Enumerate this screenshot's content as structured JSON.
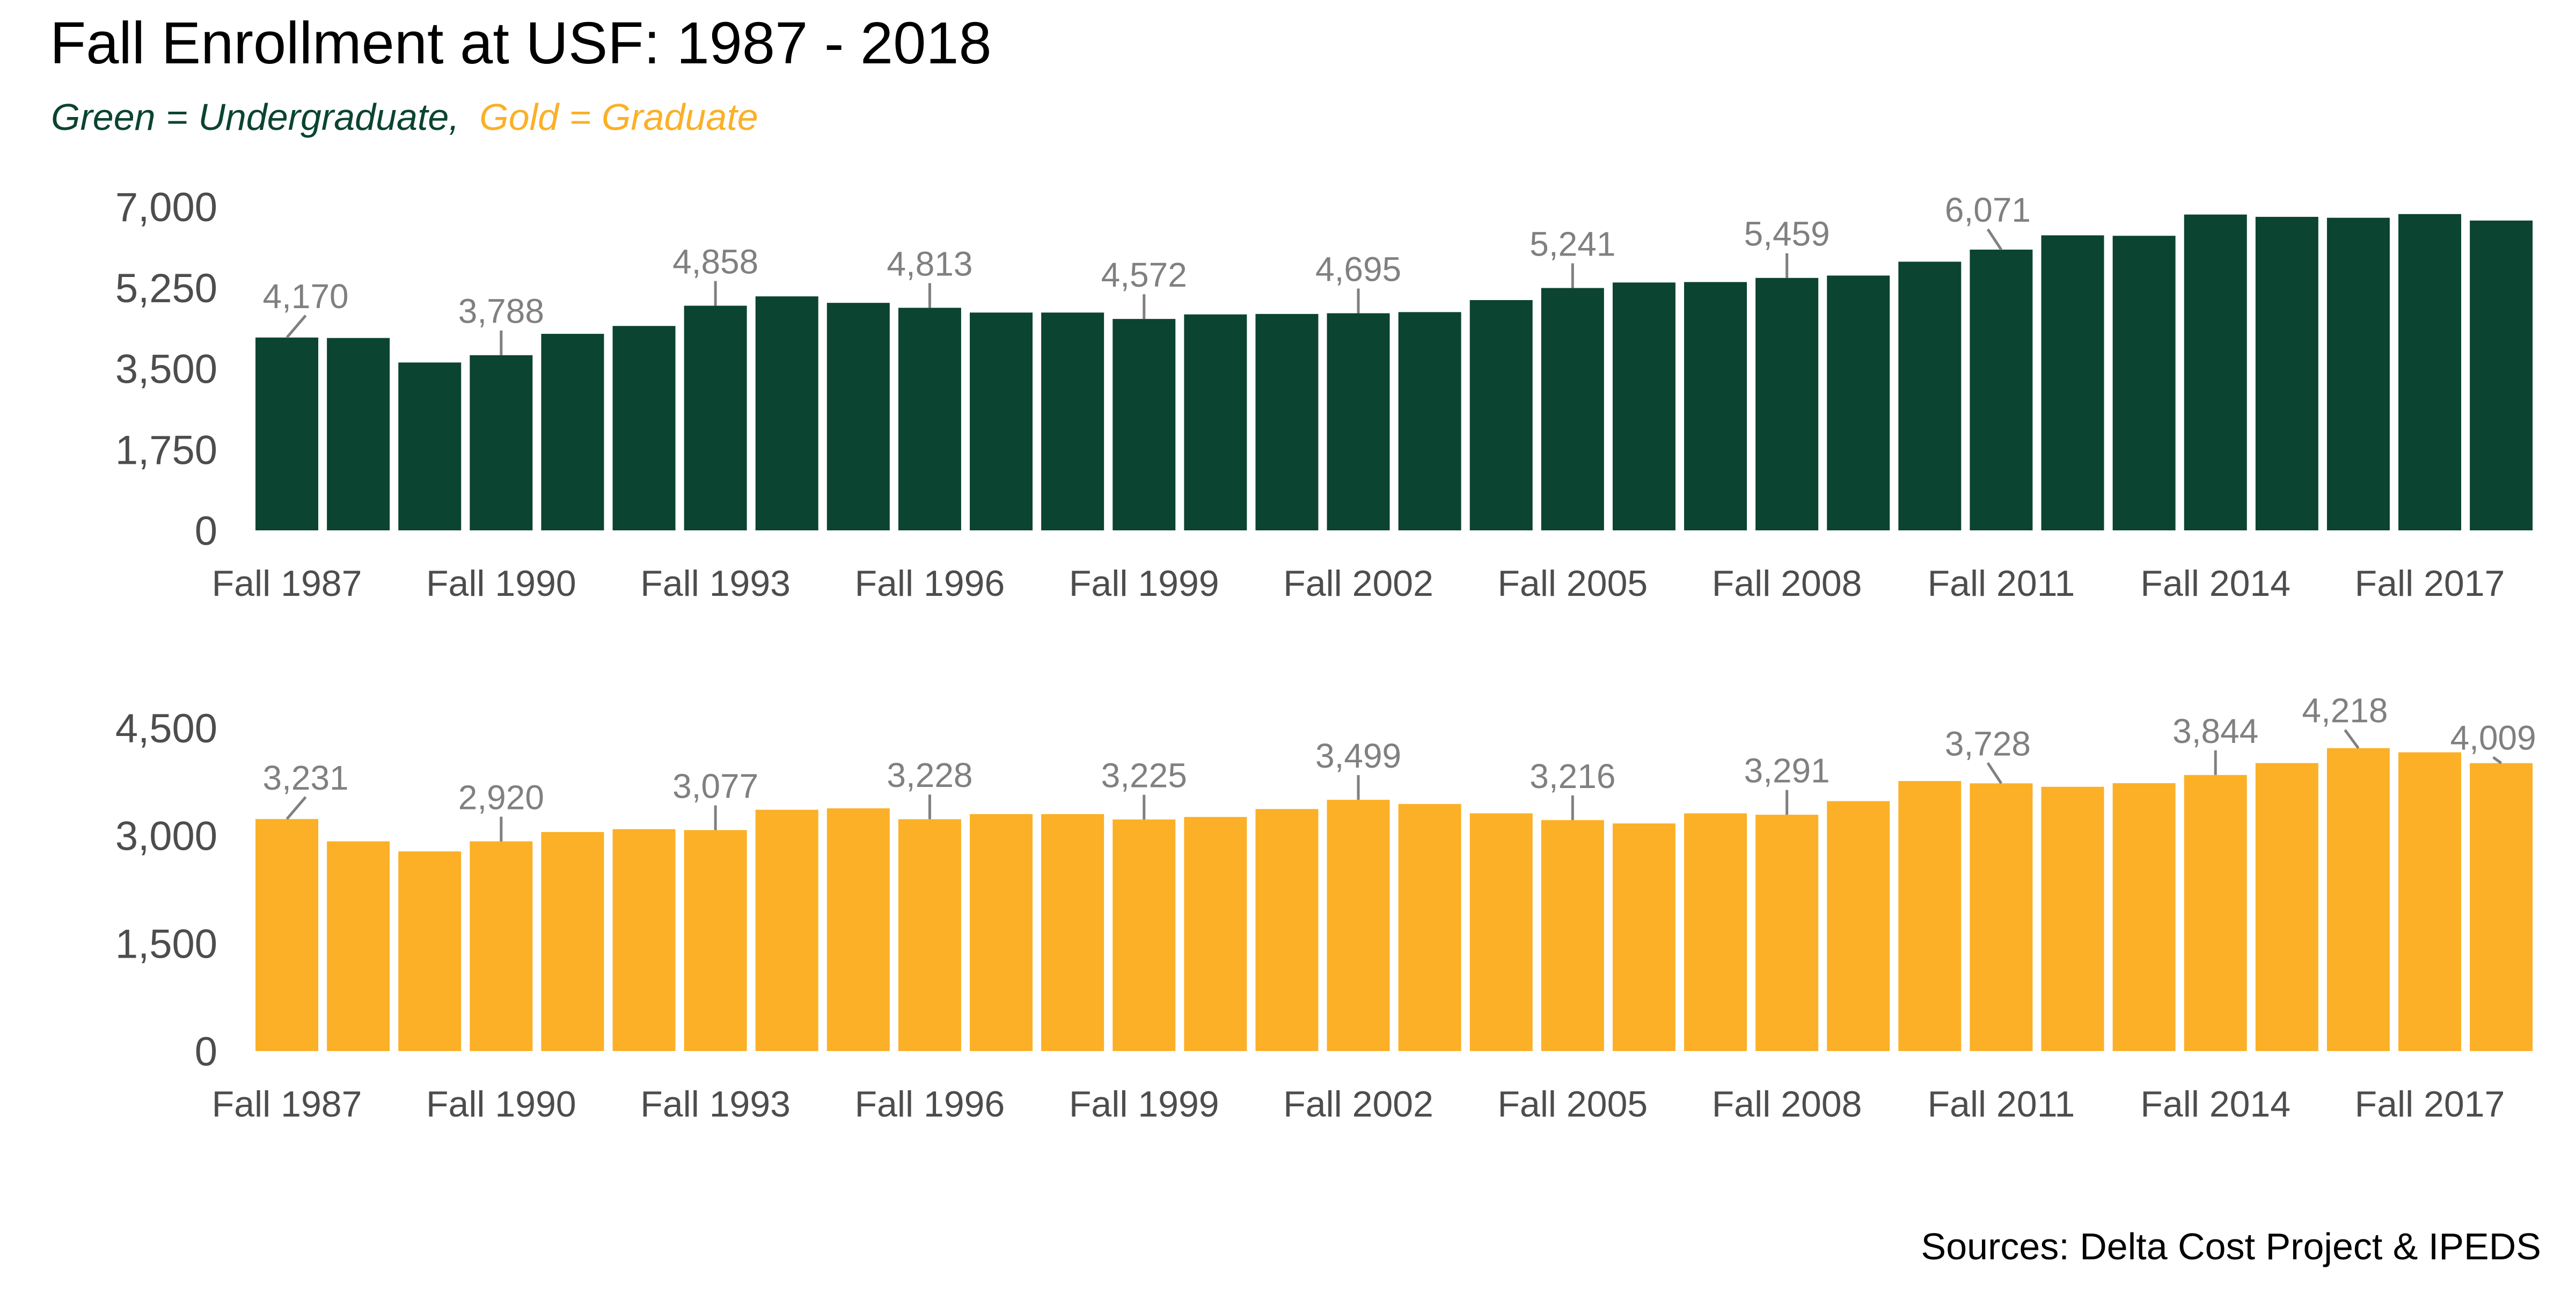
{
  "title": "Fall Enrollment at USF: 1987 - 2018",
  "subtitle": {
    "green_part": "Green = Undergraduate,",
    "gold_part": "Gold = Graduate"
  },
  "source": "Sources: Delta Cost Project & IPEDS",
  "colors": {
    "undergraduate": "#0b4430",
    "graduate": "#fbb027",
    "label": "#808080",
    "axis_text": "#4d4d4d"
  },
  "chart_data": [
    {
      "type": "bar",
      "name": "undergraduate",
      "categories": [
        "Fall 1987",
        "Fall 1988",
        "Fall 1989",
        "Fall 1990",
        "Fall 1991",
        "Fall 1992",
        "Fall 1993",
        "Fall 1994",
        "Fall 1995",
        "Fall 1996",
        "Fall 1997",
        "Fall 1998",
        "Fall 1999",
        "Fall 2000",
        "Fall 2001",
        "Fall 2002",
        "Fall 2003",
        "Fall 2004",
        "Fall 2005",
        "Fall 2006",
        "Fall 2007",
        "Fall 2008",
        "Fall 2009",
        "Fall 2010",
        "Fall 2011",
        "Fall 2012",
        "Fall 2013",
        "Fall 2014",
        "Fall 2015",
        "Fall 2016",
        "Fall 2017",
        "Fall 2018"
      ],
      "tick_labels": [
        "Fall 1987",
        "Fall 1990",
        "Fall 1993",
        "Fall 1996",
        "Fall 1999",
        "Fall 2002",
        "Fall 2005",
        "Fall 2008",
        "Fall 2011",
        "Fall 2014",
        "Fall 2017"
      ],
      "values": [
        4170,
        4160,
        3630,
        3788,
        4250,
        4420,
        4858,
        5060,
        4920,
        4813,
        4710,
        4710,
        4572,
        4670,
        4680,
        4695,
        4720,
        4980,
        5241,
        5360,
        5370,
        5459,
        5510,
        5810,
        6071,
        6380,
        6370,
        6830,
        6780,
        6760,
        6840,
        6700
      ],
      "labeled_values": [
        {
          "category": "Fall 1987",
          "value": 4170
        },
        {
          "category": "Fall 1990",
          "value": 3788
        },
        {
          "category": "Fall 1993",
          "value": 4858
        },
        {
          "category": "Fall 1996",
          "value": 4813
        },
        {
          "category": "Fall 1999",
          "value": 4572
        },
        {
          "category": "Fall 2002",
          "value": 4695
        },
        {
          "category": "Fall 2005",
          "value": 5241
        },
        {
          "category": "Fall 2008",
          "value": 5459
        },
        {
          "category": "Fall 2011",
          "value": 6071
        }
      ],
      "yticks": [
        "0",
        "1,750",
        "3,500",
        "5,250",
        "7,000"
      ],
      "ylim": [
        0,
        7000
      ]
    },
    {
      "type": "bar",
      "name": "graduate",
      "categories": [
        "Fall 1987",
        "Fall 1988",
        "Fall 1989",
        "Fall 1990",
        "Fall 1991",
        "Fall 1992",
        "Fall 1993",
        "Fall 1994",
        "Fall 1995",
        "Fall 1996",
        "Fall 1997",
        "Fall 1998",
        "Fall 1999",
        "Fall 2000",
        "Fall 2001",
        "Fall 2002",
        "Fall 2003",
        "Fall 2004",
        "Fall 2005",
        "Fall 2006",
        "Fall 2007",
        "Fall 2008",
        "Fall 2009",
        "Fall 2010",
        "Fall 2011",
        "Fall 2012",
        "Fall 2013",
        "Fall 2014",
        "Fall 2015",
        "Fall 2016",
        "Fall 2017",
        "Fall 2018"
      ],
      "tick_labels": [
        "Fall 1987",
        "Fall 1990",
        "Fall 1993",
        "Fall 1996",
        "Fall 1999",
        "Fall 2002",
        "Fall 2005",
        "Fall 2008",
        "Fall 2011",
        "Fall 2014",
        "Fall 2017"
      ],
      "values": [
        3231,
        2920,
        2780,
        2920,
        3050,
        3090,
        3077,
        3360,
        3380,
        3228,
        3300,
        3300,
        3225,
        3260,
        3370,
        3499,
        3440,
        3310,
        3216,
        3170,
        3310,
        3291,
        3480,
        3760,
        3728,
        3680,
        3730,
        3844,
        4010,
        4218,
        4160,
        4009
      ],
      "labeled_values": [
        {
          "category": "Fall 1987",
          "value": 3231
        },
        {
          "category": "Fall 1990",
          "value": 2920
        },
        {
          "category": "Fall 1993",
          "value": 3077
        },
        {
          "category": "Fall 1996",
          "value": 3228
        },
        {
          "category": "Fall 1999",
          "value": 3225
        },
        {
          "category": "Fall 2002",
          "value": 3499
        },
        {
          "category": "Fall 2005",
          "value": 3216
        },
        {
          "category": "Fall 2008",
          "value": 3291
        },
        {
          "category": "Fall 2011",
          "value": 3728
        },
        {
          "category": "Fall 2014",
          "value": 3844
        },
        {
          "category": "Fall 2016",
          "value": 4218
        },
        {
          "category": "Fall 2018",
          "value": 4009
        }
      ],
      "yticks": [
        "0",
        "1,500",
        "3,000",
        "4,500"
      ],
      "ylim": [
        0,
        4500
      ]
    }
  ]
}
